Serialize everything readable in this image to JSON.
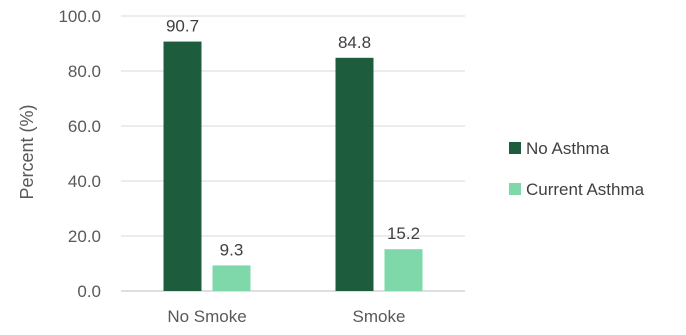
{
  "chart_data": {
    "type": "bar",
    "categories": [
      "No Smoke",
      "Smoke"
    ],
    "series": [
      {
        "name": "No Asthma",
        "values": [
          90.7,
          84.8
        ],
        "color": "#1e5c3e"
      },
      {
        "name": "Current Asthma",
        "values": [
          9.3,
          15.2
        ],
        "color": "#7fd8a9"
      }
    ],
    "y_ticks": [
      "0.0",
      "20.0",
      "40.0",
      "60.0",
      "80.0",
      "100.0"
    ],
    "data_labels": [
      [
        "90.7",
        "84.8"
      ],
      [
        "9.3",
        "15.2"
      ]
    ],
    "ylabel": "Percent (%)",
    "xlabel": "",
    "ylim": [
      0,
      100
    ],
    "grid": true,
    "legend_position": "right"
  }
}
